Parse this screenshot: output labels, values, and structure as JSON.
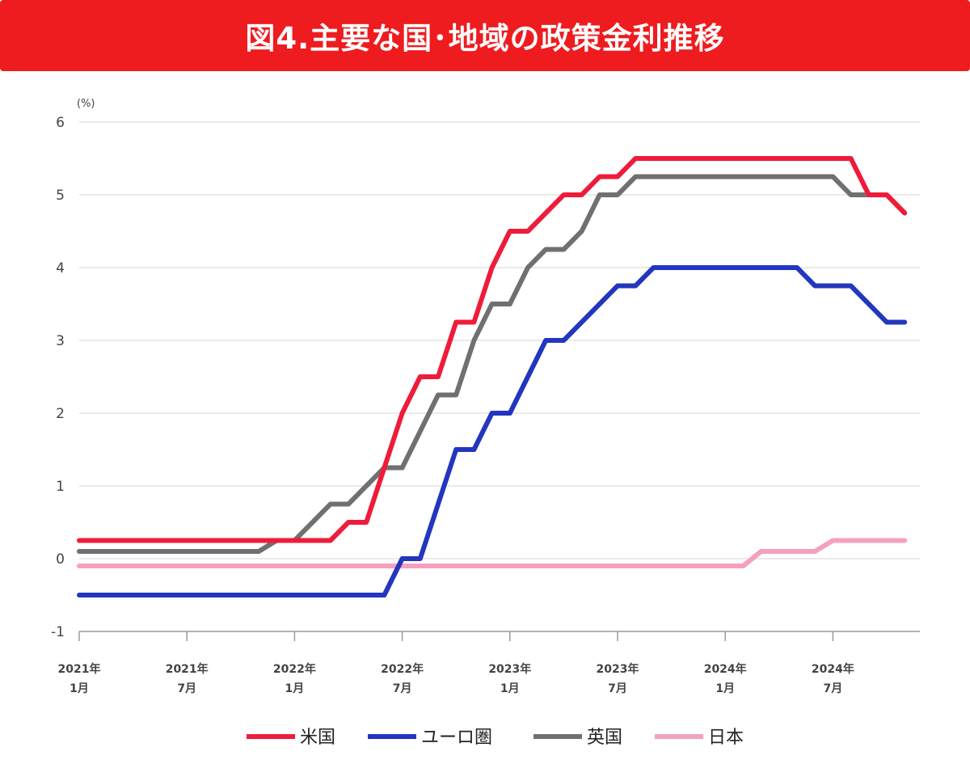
{
  "title": "図4.主要な国･地域の政策金利推移",
  "chart_data": {
    "type": "line",
    "title": "図4.主要な国･地域の政策金利推移",
    "ylabel": "(%)",
    "xlabel": "",
    "ylim": [
      -1,
      6
    ],
    "yticks": [
      "6",
      "5",
      "4",
      "3",
      "2",
      "1",
      "0",
      "-1"
    ],
    "xtick_labels": [
      {
        "year": "2021年",
        "month": "1月"
      },
      {
        "year": "2021年",
        "month": "7月"
      },
      {
        "year": "2022年",
        "month": "1月"
      },
      {
        "year": "2022年",
        "month": "7月"
      },
      {
        "year": "2023年",
        "month": "1月"
      },
      {
        "year": "2023年",
        "month": "7月"
      },
      {
        "year": "2024年",
        "month": "1月"
      },
      {
        "year": "2024年",
        "month": "7月"
      }
    ],
    "x_range": [
      "2021-01",
      "2024-10"
    ],
    "grid": true,
    "legend_position": "bottom",
    "series": [
      {
        "name": "米国",
        "color": "#ee1c3a",
        "points": [
          [
            "2021-01",
            0.25
          ],
          [
            "2022-01",
            0.25
          ],
          [
            "2022-03",
            0.25
          ],
          [
            "2022-04",
            0.5
          ],
          [
            "2022-05",
            0.5
          ],
          [
            "2022-06",
            1.25
          ],
          [
            "2022-07",
            2.0
          ],
          [
            "2022-08",
            2.5
          ],
          [
            "2022-09",
            2.5
          ],
          [
            "2022-10",
            3.25
          ],
          [
            "2022-11",
            3.25
          ],
          [
            "2022-12",
            4.0
          ],
          [
            "2023-01",
            4.5
          ],
          [
            "2023-02",
            4.5
          ],
          [
            "2023-03",
            4.75
          ],
          [
            "2023-04",
            5.0
          ],
          [
            "2023-05",
            5.0
          ],
          [
            "2023-06",
            5.25
          ],
          [
            "2023-07",
            5.25
          ],
          [
            "2023-08",
            5.5
          ],
          [
            "2024-08",
            5.5
          ],
          [
            "2024-09",
            5.0
          ],
          [
            "2024-10",
            5.0
          ],
          [
            "2024-11",
            4.75
          ]
        ]
      },
      {
        "name": "ユーロ圏",
        "color": "#2236be",
        "points": [
          [
            "2021-01",
            -0.5
          ],
          [
            "2022-06",
            -0.5
          ],
          [
            "2022-07",
            0.0
          ],
          [
            "2022-08",
            0.0
          ],
          [
            "2022-09",
            0.75
          ],
          [
            "2022-10",
            1.5
          ],
          [
            "2022-11",
            1.5
          ],
          [
            "2022-12",
            2.0
          ],
          [
            "2023-01",
            2.0
          ],
          [
            "2023-02",
            2.5
          ],
          [
            "2023-03",
            3.0
          ],
          [
            "2023-04",
            3.0
          ],
          [
            "2023-05",
            3.25
          ],
          [
            "2023-06",
            3.5
          ],
          [
            "2023-07",
            3.75
          ],
          [
            "2023-08",
            3.75
          ],
          [
            "2023-09",
            4.0
          ],
          [
            "2024-05",
            4.0
          ],
          [
            "2024-06",
            3.75
          ],
          [
            "2024-08",
            3.75
          ],
          [
            "2024-09",
            3.5
          ],
          [
            "2024-10",
            3.25
          ],
          [
            "2024-11",
            3.25
          ]
        ]
      },
      {
        "name": "英国",
        "color": "#707070",
        "points": [
          [
            "2021-01",
            0.1
          ],
          [
            "2021-11",
            0.1
          ],
          [
            "2021-12",
            0.25
          ],
          [
            "2022-01",
            0.25
          ],
          [
            "2022-02",
            0.5
          ],
          [
            "2022-03",
            0.75
          ],
          [
            "2022-04",
            0.75
          ],
          [
            "2022-05",
            1.0
          ],
          [
            "2022-06",
            1.25
          ],
          [
            "2022-07",
            1.25
          ],
          [
            "2022-08",
            1.75
          ],
          [
            "2022-09",
            2.25
          ],
          [
            "2022-10",
            2.25
          ],
          [
            "2022-11",
            3.0
          ],
          [
            "2022-12",
            3.5
          ],
          [
            "2023-01",
            3.5
          ],
          [
            "2023-02",
            4.0
          ],
          [
            "2023-03",
            4.25
          ],
          [
            "2023-04",
            4.25
          ],
          [
            "2023-05",
            4.5
          ],
          [
            "2023-06",
            5.0
          ],
          [
            "2023-07",
            5.0
          ],
          [
            "2023-08",
            5.25
          ],
          [
            "2024-07",
            5.25
          ],
          [
            "2024-08",
            5.0
          ],
          [
            "2024-10",
            5.0
          ],
          [
            "2024-11",
            4.75
          ]
        ]
      },
      {
        "name": "日本",
        "color": "#f5a0c0",
        "points": [
          [
            "2021-01",
            -0.1
          ],
          [
            "2024-02",
            -0.1
          ],
          [
            "2024-03",
            0.1
          ],
          [
            "2024-06",
            0.1
          ],
          [
            "2024-07",
            0.25
          ],
          [
            "2024-11",
            0.25
          ]
        ]
      }
    ]
  }
}
